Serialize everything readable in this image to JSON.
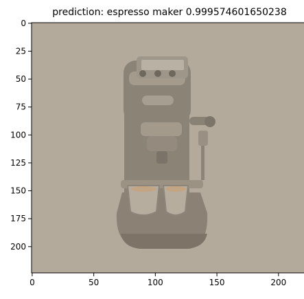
{
  "chart_data": {
    "type": "image",
    "title": "prediction: espresso maker 0.999574601650238",
    "xlim": [
      -0.5,
      223.5
    ],
    "ylim": [
      223.5,
      -0.5
    ],
    "xticks": [
      0,
      50,
      100,
      150,
      200
    ],
    "yticks": [
      0,
      25,
      50,
      75,
      100,
      125,
      150,
      175,
      200
    ],
    "image_content": "espresso maker",
    "background_color": "#b3aa9c",
    "grid": false
  }
}
